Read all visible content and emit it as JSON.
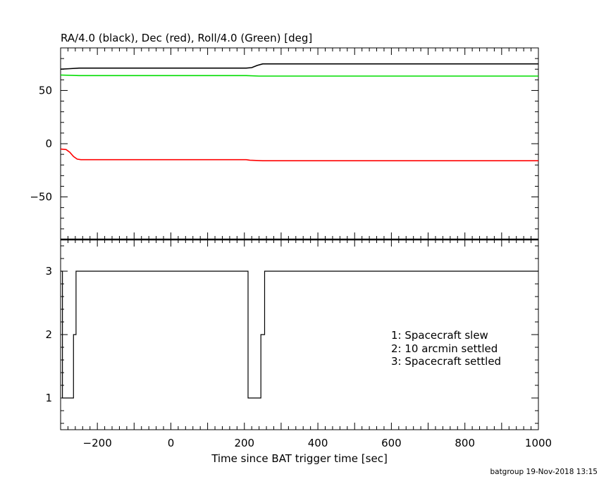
{
  "footer": "batgroup 19-Nov-2018 13:15",
  "colors": {
    "ra": "#000000",
    "dec": "#ff0000",
    "roll": "#00dd00",
    "mode": "#000000"
  },
  "chart_data": [
    {
      "type": "line",
      "title": "RA/4.0 (black), Dec (red), Roll/4.0 (Green) [deg]",
      "xlabel": "",
      "ylabel": "",
      "xlim": [
        -300,
        1000
      ],
      "ylim": [
        -90,
        90
      ],
      "y_ticks": [
        {
          "value": 50,
          "label": "50"
        },
        {
          "value": 0,
          "label": "0"
        },
        {
          "value": -50,
          "label": "−50"
        }
      ],
      "grid": false,
      "series": [
        {
          "name": "RA/4.0",
          "color": "#000000",
          "points": [
            [
              -300,
              70
            ],
            [
              -275,
              70.5
            ],
            [
              -250,
              71
            ],
            [
              0,
              71
            ],
            [
              205,
              71
            ],
            [
              220,
              71.5
            ],
            [
              235,
              73.5
            ],
            [
              250,
              75
            ],
            [
              1000,
              75
            ]
          ]
        },
        {
          "name": "Dec",
          "color": "#ff0000",
          "points": [
            [
              -300,
              -5
            ],
            [
              -285,
              -5.5
            ],
            [
              -275,
              -8
            ],
            [
              -265,
              -12
            ],
            [
              -255,
              -14.5
            ],
            [
              -245,
              -15
            ],
            [
              0,
              -15
            ],
            [
              205,
              -15
            ],
            [
              215,
              -15.5
            ],
            [
              250,
              -16
            ],
            [
              1000,
              -16
            ]
          ]
        },
        {
          "name": "Roll/4.0",
          "color": "#00dd00",
          "points": [
            [
              -300,
              64.5
            ],
            [
              -250,
              64
            ],
            [
              0,
              64
            ],
            [
              205,
              64
            ],
            [
              240,
              63.5
            ],
            [
              1000,
              63.5
            ]
          ]
        }
      ]
    },
    {
      "type": "line",
      "title": "",
      "xlabel": "Time since BAT trigger time [sec]",
      "ylabel": "",
      "xlim": [
        -300,
        1000
      ],
      "ylim": [
        0.5,
        3.5
      ],
      "x_ticks": [
        {
          "value": -200,
          "label": "−200"
        },
        {
          "value": 0,
          "label": "0"
        },
        {
          "value": 200,
          "label": "200"
        },
        {
          "value": 400,
          "label": "400"
        },
        {
          "value": 600,
          "label": "600"
        },
        {
          "value": 800,
          "label": "800"
        },
        {
          "value": 1000,
          "label": "1000"
        }
      ],
      "y_ticks": [
        {
          "value": 3,
          "label": "3"
        },
        {
          "value": 2,
          "label": "2"
        },
        {
          "value": 1,
          "label": "1"
        }
      ],
      "grid": false,
      "legend_placement": "center-right",
      "legend": [
        "1: Spacecraft slew",
        "2: 10 arcmin settled",
        "3: Spacecraft settled"
      ],
      "series": [
        {
          "name": "",
          "color": "#000000",
          "step_points": [
            [
              -300,
              3
            ],
            [
              -295,
              1
            ],
            [
              -265,
              2
            ],
            [
              -258,
              3
            ],
            [
              210,
              1
            ],
            [
              245,
              2
            ],
            [
              255,
              3
            ],
            [
              1000,
              3
            ]
          ]
        }
      ]
    }
  ]
}
